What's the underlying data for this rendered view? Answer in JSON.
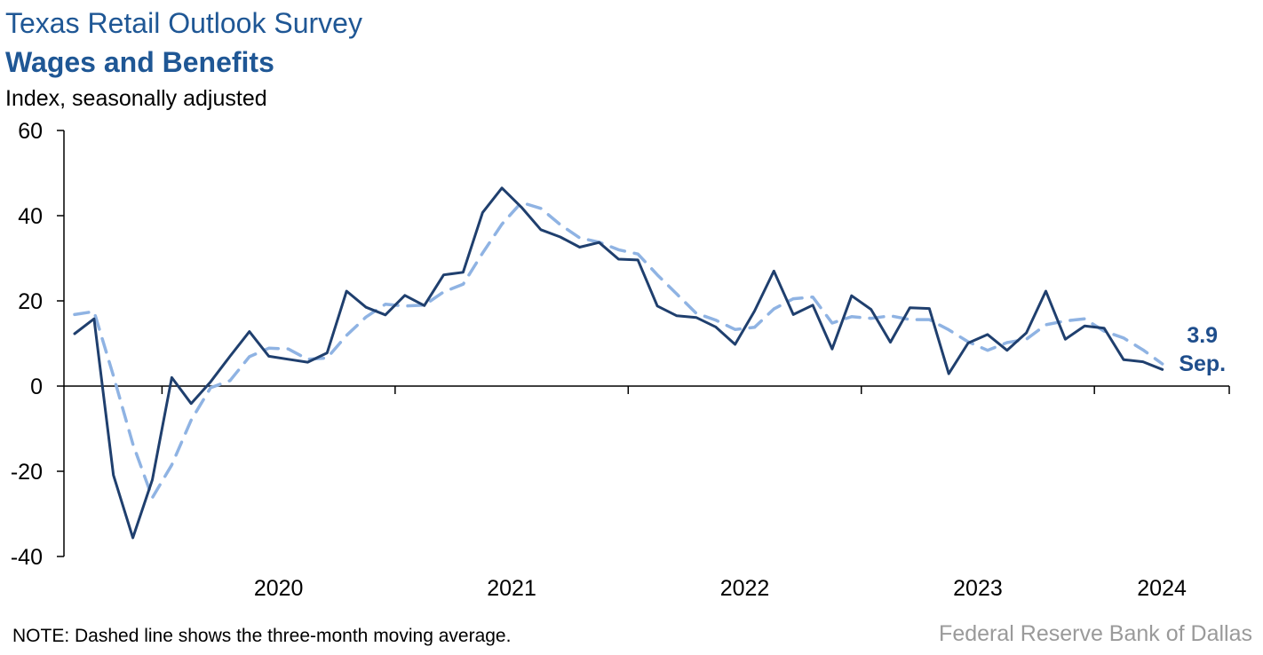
{
  "header": {
    "title": "Texas Retail Outlook Survey",
    "subtitle": "Wages and Benefits",
    "unit": "Index, seasonally adjusted"
  },
  "footer": {
    "note": "NOTE: Dashed line shows the three-month moving average.",
    "source": "Federal Reserve Bank of Dallas"
  },
  "chart_data": {
    "type": "line",
    "title": "Wages and Benefits",
    "ylabel": "Index, seasonally adjusted",
    "ylim": [
      -40,
      60
    ],
    "yticks": [
      60,
      40,
      20,
      0,
      -20,
      -40
    ],
    "xticks": [
      "2020",
      "2021",
      "2022",
      "2023",
      "2024"
    ],
    "grid": false,
    "colors": {
      "index": "#1f3f6e",
      "moving_average": "#8fb3e3",
      "label": "#1f4e8c",
      "source": "#9a9a9a"
    },
    "x_start": "2019-08",
    "x_end": "2024-09",
    "end_label": {
      "value": "3.9",
      "month": "Sep."
    },
    "series": [
      {
        "name": "",
        "style": "solid",
        "values": [
          12.3,
          15.8,
          -20.9,
          -35.6,
          -22.0,
          2.0,
          -4.1,
          1.0,
          7.0,
          12.8,
          7.0,
          6.3,
          5.6,
          7.8,
          22.3,
          18.5,
          16.7,
          21.3,
          18.9,
          26.1,
          26.7,
          40.7,
          46.5,
          42.0,
          36.7,
          35.0,
          32.6,
          33.7,
          29.8,
          29.6,
          18.8,
          16.5,
          16.1,
          13.9,
          9.8,
          17.6,
          27.0,
          16.8,
          19.0,
          8.7,
          21.2,
          18.0,
          10.3,
          18.4,
          18.2,
          2.9,
          10.1,
          12.1,
          8.4,
          12.5,
          22.3,
          11.0,
          14.1,
          13.6,
          6.2,
          5.7,
          3.9
        ]
      },
      {
        "name": "",
        "style": "dashed",
        "values": [
          16.8,
          17.5,
          2.4,
          -13.6,
          -26.2,
          -18.5,
          -8.0,
          -0.4,
          1.3,
          6.9,
          8.9,
          8.7,
          6.3,
          6.6,
          11.9,
          16.2,
          19.2,
          18.8,
          19.0,
          22.1,
          23.9,
          31.2,
          38.0,
          43.1,
          41.7,
          37.9,
          34.8,
          33.8,
          32.0,
          31.0,
          26.1,
          21.6,
          17.1,
          15.5,
          13.3,
          13.8,
          18.1,
          20.5,
          20.9,
          14.8,
          16.3,
          15.9,
          16.5,
          15.6,
          15.6,
          13.2,
          10.4,
          8.4,
          10.2,
          11.0,
          14.4,
          15.3,
          15.8,
          12.9,
          11.3,
          8.5,
          5.2
        ]
      }
    ]
  }
}
